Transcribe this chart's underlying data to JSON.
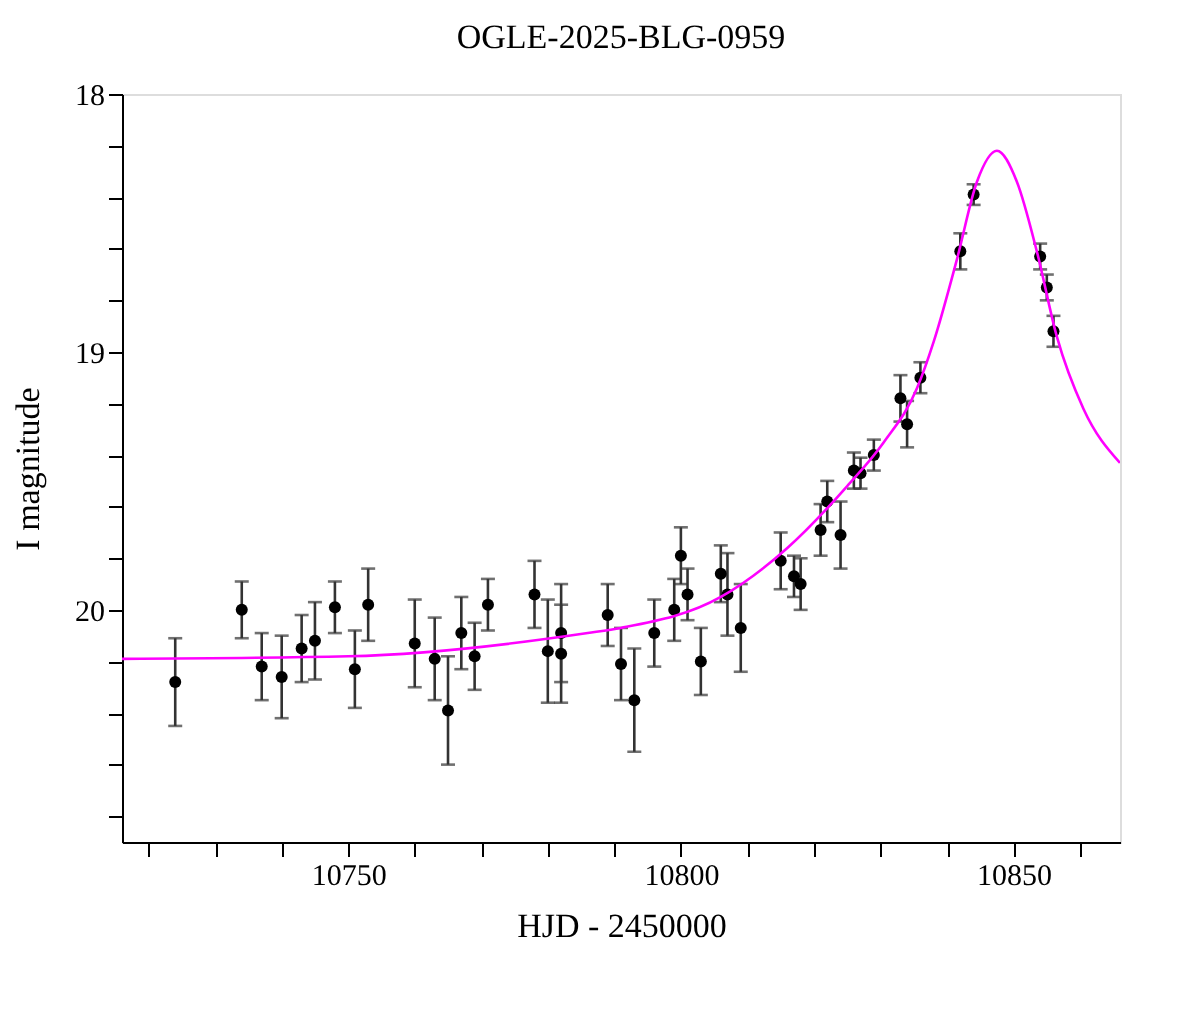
{
  "chart_data": {
    "type": "scatter",
    "title": "OGLE-2025-BLG-0959",
    "xlabel": "HJD - 2450000",
    "ylabel": "I magnitude",
    "xlim": [
      10716,
      10866
    ],
    "ylim": [
      20.9,
      18
    ],
    "xticks": [
      {
        "value": 10720,
        "label": null
      },
      {
        "value": 10730,
        "label": null
      },
      {
        "value": 10740,
        "label": null
      },
      10750,
      {
        "value": 10760,
        "label": null
      },
      {
        "value": 10770,
        "label": null
      },
      {
        "value": 10780,
        "label": null
      },
      {
        "value": 10790,
        "label": null
      },
      10800,
      {
        "value": 10810,
        "label": null
      },
      {
        "value": 10820,
        "label": null
      },
      {
        "value": 10830,
        "label": null
      },
      {
        "value": 10840,
        "label": null
      },
      10850,
      {
        "value": 10860,
        "label": null
      }
    ],
    "yticks": [
      18,
      {
        "value": 18.2,
        "label": null
      },
      {
        "value": 18.4,
        "label": null
      },
      {
        "value": 18.6,
        "label": null
      },
      {
        "value": 18.8,
        "label": null
      },
      19,
      {
        "value": 19.2,
        "label": null
      },
      {
        "value": 19.4,
        "label": null
      },
      {
        "value": 19.6,
        "label": null
      },
      {
        "value": 19.8,
        "label": null
      },
      20,
      {
        "value": 20.2,
        "label": null
      },
      {
        "value": 20.4,
        "label": null
      },
      {
        "value": 20.6,
        "label": null
      },
      {
        "value": 20.8,
        "label": null
      }
    ],
    "grid": false,
    "marker": "circle",
    "series": [
      {
        "type": "scatter",
        "color": "#000000",
        "x": [
          10724,
          10734,
          10737,
          10740,
          10743,
          10745,
          10748,
          10751,
          10753,
          10760,
          10763,
          10765,
          10767,
          10769,
          10771,
          10778,
          10780,
          10782,
          10782,
          10789,
          10791,
          10793,
          10796,
          10799,
          10800,
          10801,
          10803,
          10806,
          10807,
          10809,
          10815,
          10817,
          10818,
          10821,
          10822,
          10824,
          10826,
          10827,
          10829,
          10833,
          10834,
          10836,
          10842,
          10844,
          10854,
          10855,
          10856
        ],
        "values": [
          20.28,
          20.0,
          20.22,
          20.26,
          20.15,
          20.12,
          19.99,
          20.23,
          19.98,
          20.13,
          20.19,
          20.39,
          20.09,
          20.18,
          19.98,
          19.94,
          20.16,
          20.09,
          20.17,
          20.02,
          20.21,
          20.35,
          20.09,
          20.0,
          19.79,
          19.94,
          20.2,
          19.86,
          19.94,
          20.07,
          19.81,
          19.87,
          19.9,
          19.69,
          19.58,
          19.71,
          19.46,
          19.47,
          19.4,
          19.18,
          19.28,
          19.1,
          18.61,
          18.39,
          18.63,
          18.75,
          18.92
        ],
        "errors": [
          0.17,
          0.11,
          0.13,
          0.16,
          0.13,
          0.15,
          0.1,
          0.15,
          0.14,
          0.17,
          0.16,
          0.21,
          0.14,
          0.13,
          0.1,
          0.13,
          0.2,
          0.19,
          0.19,
          0.12,
          0.14,
          0.2,
          0.13,
          0.12,
          0.11,
          0.1,
          0.13,
          0.11,
          0.16,
          0.17,
          0.11,
          0.08,
          0.1,
          0.1,
          0.08,
          0.13,
          0.07,
          0.06,
          0.06,
          0.09,
          0.09,
          0.06,
          0.07,
          0.04,
          0.05,
          0.05,
          0.06
        ]
      },
      {
        "type": "line",
        "color": "#ff00ff",
        "line_style": "solid",
        "marker": "none",
        "x": [
          10716,
          10750,
          10786,
          10791,
          10806,
          10816,
          10825,
          10830.5,
          10835.5,
          10838,
          10841.5,
          10844.5,
          10847.5,
          10850.5,
          10853.5,
          10856.5,
          10860.5,
          10866
        ],
        "values": [
          20.19,
          20.18,
          20.09,
          20.07,
          19.95,
          19.76,
          19.52,
          19.35,
          19.14,
          18.96,
          18.64,
          18.34,
          18.22,
          18.34,
          18.61,
          18.94,
          19.22,
          19.43
        ]
      }
    ]
  }
}
